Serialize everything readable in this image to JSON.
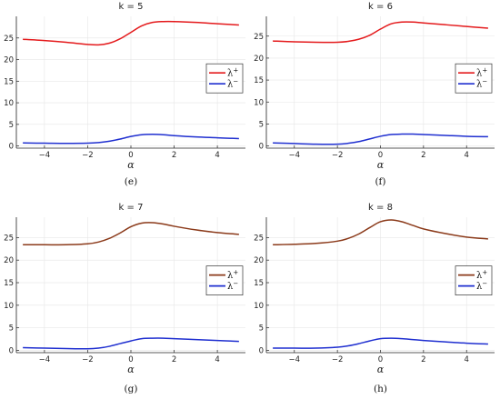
{
  "colors": {
    "plus": "#e41a1c",
    "plus_dark": "#8b3a1a",
    "minus": "#1f2fd0",
    "grid": "#e6e6e6",
    "axis": "#222222"
  },
  "chart_data": [
    {
      "type": "line",
      "title": "k = 5",
      "caption": "(e)",
      "xlabel": "α",
      "ylabel": "",
      "xlim": [
        -5.3,
        5.3
      ],
      "ylim": [
        -0.5,
        30
      ],
      "xticks": [
        -4,
        -2,
        0,
        2,
        4
      ],
      "xtick_labels": [
        "−4",
        "−2",
        "0",
        "2",
        "4"
      ],
      "yticks": [
        0,
        5,
        10,
        15,
        20,
        25
      ],
      "ytick_labels": [
        "0",
        "5",
        "10",
        "15",
        "20",
        "25"
      ],
      "grid": true,
      "legend": "right",
      "series": [
        {
          "name": "λ⁺",
          "label_base": "λ",
          "label_sup": "+",
          "color": "#e41a1c",
          "x": [
            -5,
            -4,
            -3,
            -2,
            -1.5,
            -1,
            -0.5,
            0,
            0.5,
            1,
            1.5,
            2,
            3,
            4,
            5
          ],
          "y": [
            24.7,
            24.4,
            24.0,
            23.5,
            23.4,
            23.8,
            24.8,
            26.3,
            27.8,
            28.6,
            28.8,
            28.8,
            28.6,
            28.3,
            28.0
          ]
        },
        {
          "name": "λ⁻",
          "label_base": "λ",
          "label_sup": "−",
          "color": "#1f2fd0",
          "x": [
            -5,
            -4,
            -3,
            -2,
            -1.5,
            -1,
            -0.5,
            0,
            0.5,
            1,
            1.5,
            2,
            3,
            4,
            5
          ],
          "y": [
            0.7,
            0.65,
            0.6,
            0.65,
            0.8,
            1.1,
            1.6,
            2.2,
            2.6,
            2.7,
            2.6,
            2.4,
            2.1,
            1.9,
            1.7
          ]
        }
      ]
    },
    {
      "type": "line",
      "title": "k = 6",
      "caption": "(f)",
      "xlabel": "α",
      "ylabel": "",
      "xlim": [
        -5.3,
        5.3
      ],
      "ylim": [
        -0.5,
        29.5
      ],
      "xticks": [
        -4,
        -2,
        0,
        2,
        4
      ],
      "xtick_labels": [
        "−4",
        "−2",
        "0",
        "2",
        "4"
      ],
      "yticks": [
        0,
        5,
        10,
        15,
        20,
        25
      ],
      "ytick_labels": [
        "0",
        "5",
        "10",
        "15",
        "20",
        "25"
      ],
      "grid": true,
      "legend": "right",
      "series": [
        {
          "name": "λ⁺",
          "label_base": "λ",
          "label_sup": "+",
          "color": "#e41a1c",
          "x": [
            -5,
            -4,
            -3,
            -2,
            -1.5,
            -1,
            -0.5,
            0,
            0.5,
            1,
            1.5,
            2,
            3,
            4,
            5
          ],
          "y": [
            23.9,
            23.7,
            23.6,
            23.6,
            23.8,
            24.3,
            25.2,
            26.6,
            27.8,
            28.2,
            28.2,
            28.0,
            27.6,
            27.2,
            26.8
          ]
        },
        {
          "name": "λ⁻",
          "label_base": "λ",
          "label_sup": "−",
          "color": "#1f2fd0",
          "x": [
            -5,
            -4,
            -3,
            -2,
            -1.5,
            -1,
            -0.5,
            0,
            0.5,
            1,
            1.5,
            2,
            3,
            4,
            5
          ],
          "y": [
            0.7,
            0.55,
            0.4,
            0.4,
            0.6,
            1.0,
            1.6,
            2.2,
            2.6,
            2.7,
            2.7,
            2.6,
            2.4,
            2.2,
            2.1
          ]
        }
      ]
    },
    {
      "type": "line",
      "title": "k = 7",
      "caption": "(g)",
      "xlabel": "α",
      "ylabel": "",
      "xlim": [
        -5.3,
        5.3
      ],
      "ylim": [
        -0.5,
        29.5
      ],
      "xticks": [
        -4,
        -2,
        0,
        2,
        4
      ],
      "xtick_labels": [
        "−4",
        "−2",
        "0",
        "2",
        "4"
      ],
      "yticks": [
        0,
        5,
        10,
        15,
        20,
        25
      ],
      "ytick_labels": [
        "0",
        "5",
        "10",
        "15",
        "20",
        "25"
      ],
      "grid": true,
      "legend": "right",
      "series": [
        {
          "name": "λ⁺",
          "label_base": "λ",
          "label_sup": "+",
          "color": "#8b3a1a",
          "x": [
            -5,
            -4,
            -3,
            -2,
            -1.5,
            -1,
            -0.5,
            0,
            0.5,
            1,
            1.5,
            2,
            3,
            4,
            5
          ],
          "y": [
            23.4,
            23.4,
            23.4,
            23.6,
            24.0,
            24.8,
            26.0,
            27.4,
            28.2,
            28.3,
            28.0,
            27.5,
            26.7,
            26.1,
            25.7
          ]
        },
        {
          "name": "λ⁻",
          "label_base": "λ",
          "label_sup": "−",
          "color": "#1f2fd0",
          "x": [
            -5,
            -4,
            -3,
            -2,
            -1.5,
            -1,
            -0.5,
            0,
            0.5,
            1,
            1.5,
            2,
            3,
            4,
            5
          ],
          "y": [
            0.6,
            0.5,
            0.4,
            0.35,
            0.5,
            0.9,
            1.5,
            2.1,
            2.6,
            2.7,
            2.7,
            2.6,
            2.4,
            2.2,
            2.0
          ]
        }
      ]
    },
    {
      "type": "line",
      "title": "k = 8",
      "caption": "(h)",
      "xlabel": "α",
      "ylabel": "",
      "xlim": [
        -5.3,
        5.3
      ],
      "ylim": [
        -0.5,
        29.5
      ],
      "xticks": [
        -4,
        -2,
        0,
        2,
        4
      ],
      "xtick_labels": [
        "−4",
        "−2",
        "0",
        "2",
        "4"
      ],
      "yticks": [
        0,
        5,
        10,
        15,
        20,
        25
      ],
      "ytick_labels": [
        "0",
        "5",
        "10",
        "15",
        "20",
        "25"
      ],
      "grid": true,
      "legend": "right",
      "series": [
        {
          "name": "λ⁺",
          "label_base": "λ",
          "label_sup": "+",
          "color": "#8b3a1a",
          "x": [
            -5,
            -4,
            -3,
            -2,
            -1.5,
            -1,
            -0.5,
            0,
            0.5,
            1,
            1.5,
            2,
            3,
            4,
            5
          ],
          "y": [
            23.4,
            23.5,
            23.7,
            24.2,
            24.8,
            25.8,
            27.2,
            28.5,
            28.9,
            28.5,
            27.7,
            26.9,
            25.9,
            25.1,
            24.7
          ]
        },
        {
          "name": "λ⁻",
          "label_base": "λ",
          "label_sup": "−",
          "color": "#1f2fd0",
          "x": [
            -5,
            -4,
            -3,
            -2,
            -1.5,
            -1,
            -0.5,
            0,
            0.5,
            1,
            1.5,
            2,
            3,
            4,
            5
          ],
          "y": [
            0.5,
            0.5,
            0.5,
            0.7,
            1.0,
            1.5,
            2.1,
            2.6,
            2.7,
            2.6,
            2.4,
            2.2,
            1.9,
            1.6,
            1.4
          ]
        }
      ]
    }
  ]
}
